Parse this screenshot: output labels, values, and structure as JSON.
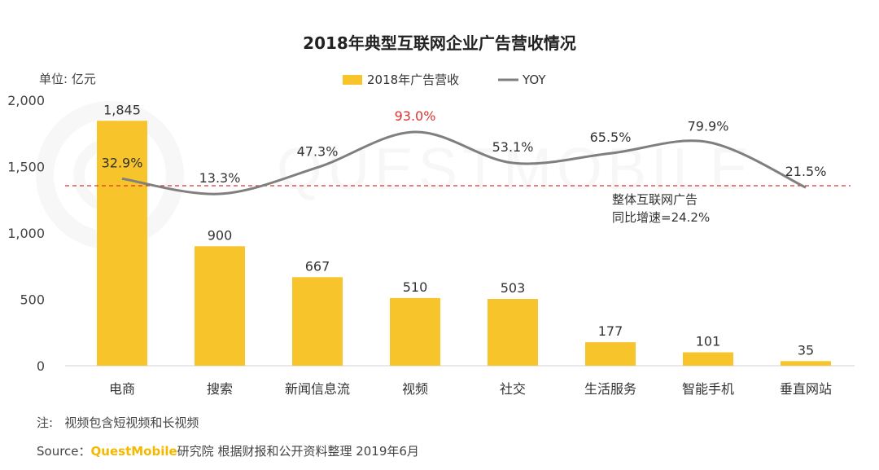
{
  "chart_data": {
    "type": "bar",
    "title": "2018年典型互联网企业广告营收情况",
    "unit_label": "单位: 亿元",
    "categories": [
      "电商",
      "搜索",
      "新闻信息流",
      "视频",
      "社交",
      "生活服务",
      "智能手机",
      "垂直网站"
    ],
    "series": [
      {
        "name": "2018年广告营收",
        "type": "bar",
        "color": "#F7C42B",
        "values": [
          1845,
          900,
          667,
          510,
          503,
          177,
          101,
          35
        ],
        "value_labels": [
          "1,845",
          "900",
          "667",
          "510",
          "503",
          "177",
          "101",
          "35"
        ]
      },
      {
        "name": "YOY",
        "type": "line",
        "color": "#7F7F7F",
        "values": [
          32.9,
          13.3,
          47.3,
          93.0,
          53.1,
          65.5,
          79.9,
          21.5
        ],
        "value_labels": [
          "32.9%",
          "13.3%",
          "47.3%",
          "93.0%",
          "53.1%",
          "65.5%",
          "79.9%",
          "21.5%"
        ],
        "highlight_color": "#E03030",
        "highlight_index": 3
      }
    ],
    "y_ticks": [
      "2,000",
      "1,500",
      "1,000",
      "500",
      "0"
    ],
    "y_tick_values": [
      2000,
      1500,
      1000,
      500,
      0
    ],
    "ylim": [
      0,
      2000
    ],
    "reference_line": {
      "value": 24.2,
      "color": "#E03030",
      "label_lines": [
        "整体互联网广告",
        "同比增速=24.2%"
      ]
    },
    "watermark": "QUESTMOBILE",
    "legend_position": "top-center",
    "grid": false
  },
  "footer": {
    "note_prefix": "注:",
    "note_text": "视频包含短视频和长视频",
    "source_prefix": "Source：",
    "source_brand": "QuestMobile",
    "source_text": "研究院  根据财报和公开资料整理 2019年6月"
  }
}
